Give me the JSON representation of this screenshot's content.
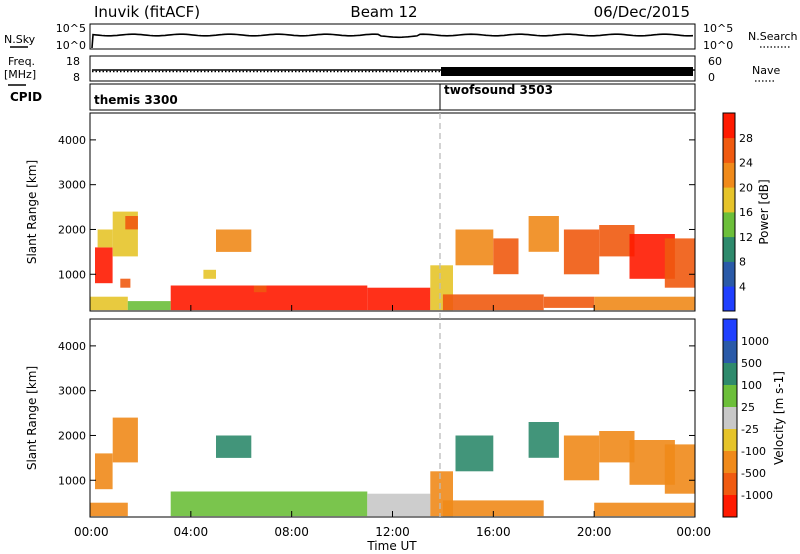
{
  "header": {
    "station": "Inuvik (fitACF)",
    "beam": "Beam 12",
    "date": "06/Dec/2015"
  },
  "strip_nsky": {
    "left_label": "N.Sky",
    "left_ticks": [
      "10^5",
      "10^0"
    ],
    "right_label": "N.Search",
    "right_ticks": [
      "10^5",
      "10^0"
    ]
  },
  "strip_freq": {
    "left_label_1": "Freq.",
    "left_label_2": "[MHz]",
    "left_ticks": [
      "18",
      "8"
    ],
    "right_label": "Nave",
    "right_ticks": [
      "60",
      "0"
    ]
  },
  "strip_cpid": {
    "label": "CPID",
    "modes": [
      {
        "name": "themis 3300",
        "start_hour": 0
      },
      {
        "name": "twofsound 3503",
        "start_hour": 14.0
      }
    ]
  },
  "chart_data": [
    {
      "type": "heatmap",
      "panel": "power",
      "xlabel": "Time UT",
      "ylabel": "Slant Range [km]",
      "xlim": [
        0,
        24
      ],
      "ylim": [
        180,
        4600
      ],
      "y_ticks": [
        1000,
        2000,
        3000,
        4000
      ],
      "y_tick_labels": [
        "1000",
        "2000",
        "3000",
        "4000"
      ],
      "colorbar": {
        "label": "Power [dB]",
        "ticks": [
          "4",
          "8",
          "12",
          "16",
          "20",
          "24",
          "28"
        ],
        "colors": [
          "#1f3fff",
          "#2a5aa8",
          "#2e8a6c",
          "#6cbf3a",
          "#e6c42a",
          "#f08a1a",
          "#f05a10",
          "#ff1a00"
        ]
      },
      "regions": [
        {
          "t": [
            0.2,
            0.9
          ],
          "r": [
            800,
            1600
          ],
          "v": 28
        },
        {
          "t": [
            0.3,
            0.9
          ],
          "r": [
            1600,
            2000
          ],
          "v": 16
        },
        {
          "t": [
            0.9,
            1.9
          ],
          "r": [
            1400,
            2400
          ],
          "v": 18
        },
        {
          "t": [
            1.4,
            1.9
          ],
          "r": [
            2000,
            2300
          ],
          "v": 26
        },
        {
          "t": [
            1.2,
            1.6
          ],
          "r": [
            700,
            900
          ],
          "v": 24
        },
        {
          "t": [
            0.0,
            1.5
          ],
          "r": [
            200,
            500
          ],
          "v": 16
        },
        {
          "t": [
            1.5,
            3.2
          ],
          "r": [
            200,
            400
          ],
          "v": 12
        },
        {
          "t": [
            3.2,
            11.0
          ],
          "r": [
            200,
            750
          ],
          "v": 28
        },
        {
          "t": [
            4.5,
            5.0
          ],
          "r": [
            900,
            1100
          ],
          "v": 18
        },
        {
          "t": [
            5.0,
            6.4
          ],
          "r": [
            1500,
            2000
          ],
          "v": 20
        },
        {
          "t": [
            6.5,
            7.0
          ],
          "r": [
            600,
            750
          ],
          "v": 24
        },
        {
          "t": [
            11.0,
            13.5
          ],
          "r": [
            200,
            700
          ],
          "v": 28
        },
        {
          "t": [
            13.5,
            14.4
          ],
          "r": [
            200,
            1200
          ],
          "v": 18
        },
        {
          "t": [
            14.0,
            18.0
          ],
          "r": [
            200,
            550
          ],
          "v": 24
        },
        {
          "t": [
            14.5,
            16.0
          ],
          "r": [
            1200,
            2000
          ],
          "v": 20
        },
        {
          "t": [
            16.0,
            17.0
          ],
          "r": [
            1000,
            1800
          ],
          "v": 24
        },
        {
          "t": [
            17.4,
            18.6
          ],
          "r": [
            1500,
            2300
          ],
          "v": 22
        },
        {
          "t": [
            18.0,
            20.0
          ],
          "r": [
            250,
            500
          ],
          "v": 24
        },
        {
          "t": [
            18.8,
            20.2
          ],
          "r": [
            1000,
            2000
          ],
          "v": 26
        },
        {
          "t": [
            20.2,
            21.6
          ],
          "r": [
            1400,
            2100
          ],
          "v": 24
        },
        {
          "t": [
            21.4,
            23.2
          ],
          "r": [
            900,
            1900
          ],
          "v": 28
        },
        {
          "t": [
            22.8,
            24.0
          ],
          "r": [
            700,
            1800
          ],
          "v": 26
        },
        {
          "t": [
            20.0,
            24.0
          ],
          "r": [
            200,
            500
          ],
          "v": 20
        }
      ]
    },
    {
      "type": "heatmap",
      "panel": "velocity",
      "xlabel": "Time UT",
      "ylabel": "Slant Range [km]",
      "xlim": [
        0,
        24
      ],
      "ylim": [
        180,
        4600
      ],
      "x_ticks": [
        0,
        4,
        8,
        12,
        16,
        20,
        24
      ],
      "x_tick_labels": [
        "00:00",
        "04:00",
        "08:00",
        "12:00",
        "16:00",
        "20:00",
        "00:00"
      ],
      "y_ticks": [
        1000,
        2000,
        3000,
        4000
      ],
      "y_tick_labels": [
        "1000",
        "2000",
        "3000",
        "4000"
      ],
      "colorbar": {
        "label": "Velocity [m s-1]",
        "ticks": [
          "1000",
          "500",
          "100",
          "25",
          "-25",
          "-100",
          "-500",
          "-1000"
        ],
        "colors": [
          "#1f3fff",
          "#2a5aa8",
          "#2e8a6c",
          "#6cbf3a",
          "#c8c8c8",
          "#e6c42a",
          "#f08a1a",
          "#f05a10",
          "#ff1a00"
        ]
      },
      "regions": [
        {
          "t": [
            0.2,
            0.9
          ],
          "r": [
            800,
            1600
          ],
          "v": -300
        },
        {
          "t": [
            0.9,
            1.9
          ],
          "r": [
            1400,
            2400
          ],
          "v": -200
        },
        {
          "t": [
            0.0,
            1.5
          ],
          "r": [
            200,
            500
          ],
          "v": -150
        },
        {
          "t": [
            3.2,
            11.0
          ],
          "r": [
            200,
            750
          ],
          "v": 60
        },
        {
          "t": [
            5.0,
            6.4
          ],
          "r": [
            1500,
            2000
          ],
          "v": 150
        },
        {
          "t": [
            11.0,
            13.5
          ],
          "r": [
            200,
            700
          ],
          "v": 0
        },
        {
          "t": [
            13.5,
            14.4
          ],
          "r": [
            200,
            1200
          ],
          "v": -120
        },
        {
          "t": [
            14.0,
            18.0
          ],
          "r": [
            200,
            550
          ],
          "v": -150
        },
        {
          "t": [
            14.5,
            16.0
          ],
          "r": [
            1200,
            2000
          ],
          "v": 200
        },
        {
          "t": [
            17.4,
            18.6
          ],
          "r": [
            1500,
            2300
          ],
          "v": 150
        },
        {
          "t": [
            18.8,
            20.2
          ],
          "r": [
            1000,
            2000
          ],
          "v": -200
        },
        {
          "t": [
            20.2,
            21.6
          ],
          "r": [
            1400,
            2100
          ],
          "v": -150
        },
        {
          "t": [
            21.4,
            23.2
          ],
          "r": [
            900,
            1900
          ],
          "v": -300
        },
        {
          "t": [
            22.8,
            24.0
          ],
          "r": [
            700,
            1800
          ],
          "v": -200
        },
        {
          "t": [
            20.0,
            24.0
          ],
          "r": [
            200,
            500
          ],
          "v": -150
        }
      ]
    }
  ]
}
